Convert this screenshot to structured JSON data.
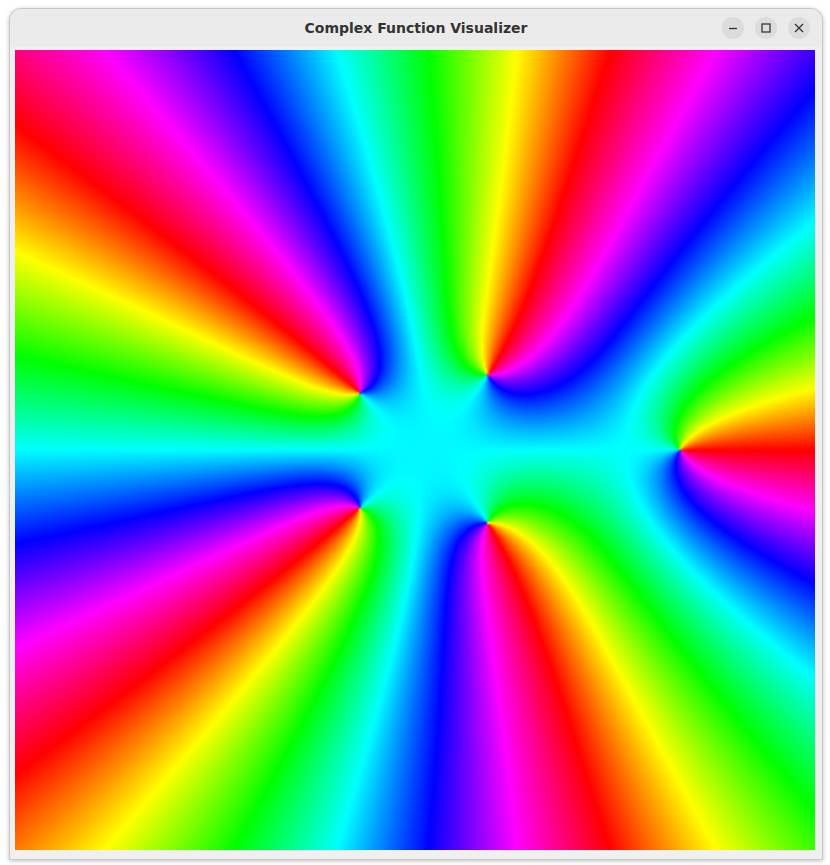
{
  "window": {
    "title": "Complex Function Visualizer"
  },
  "chart_data": {
    "type": "domain_coloring",
    "zeros": [
      [
        1.325,
        0
      ],
      [
        0.365,
        0.375
      ],
      [
        0.365,
        -0.365
      ],
      [
        -0.275,
        0.285
      ],
      [
        -0.275,
        -0.29
      ]
    ],
    "xlim": [
      -2,
      2
    ],
    "ylim": [
      -2,
      2
    ],
    "tick_labels": false
  }
}
